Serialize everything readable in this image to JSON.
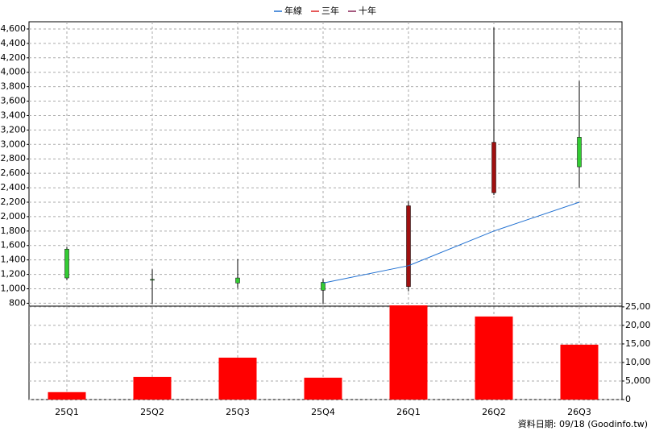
{
  "chart_data": [
    {
      "type": "candlestick",
      "series": [
        {
          "name": "年線",
          "color": "#1f6fd1",
          "values": [
            null,
            null,
            null,
            1080,
            1320,
            1800,
            2200
          ]
        },
        {
          "name": "三年",
          "color": "#dd2222",
          "values": [
            null,
            null,
            null,
            null,
            null,
            null,
            null
          ]
        },
        {
          "name": "十年",
          "color": "#882255",
          "values": [
            null,
            null,
            null,
            null,
            null,
            null,
            null
          ]
        }
      ],
      "open": [
        1150,
        1120,
        1080,
        980,
        2150,
        3030,
        2690
      ],
      "high": [
        1580,
        1270,
        1410,
        1135,
        2215,
        4620,
        3880
      ],
      "low": [
        1120,
        790,
        1010,
        790,
        965,
        2300,
        2400
      ],
      "close": [
        1550,
        1130,
        1150,
        1090,
        1030,
        2330,
        3100
      ],
      "up_color": "#33cc33",
      "down_color": "#a01010",
      "ylim": [
        760,
        4700
      ],
      "yticks": [
        800,
        {
          "value": 1000,
          "label": "1,000"
        },
        {
          "value": 1200,
          "label": "1,200"
        },
        {
          "value": 1400,
          "label": "1,400"
        },
        {
          "value": 1600,
          "label": "1,600"
        },
        {
          "value": 1800,
          "label": "1,800"
        },
        {
          "value": 2000,
          "label": "2,000"
        },
        {
          "value": 2200,
          "label": "2,200"
        },
        {
          "value": 2400,
          "label": "2,400"
        },
        {
          "value": 2600,
          "label": "2,600"
        },
        {
          "value": 2800,
          "label": "2,800"
        },
        {
          "value": 3000,
          "label": "3,000"
        },
        {
          "value": 3200,
          "label": "3,200"
        },
        {
          "value": 3400,
          "label": "3,400"
        },
        {
          "value": 3600,
          "label": "3,600"
        },
        {
          "value": 3800,
          "label": "3,800"
        },
        {
          "value": 4000,
          "label": "4,000"
        },
        {
          "value": 4200,
          "label": "4,200"
        },
        {
          "value": 4400,
          "label": "4,400"
        },
        {
          "value": 4600,
          "label": "4,600"
        }
      ],
      "grid": true
    },
    {
      "type": "bar",
      "categories": [
        "25Q1",
        "25Q2",
        "25Q3",
        "25Q4",
        "26Q1",
        "26Q2",
        "26Q3"
      ],
      "values": [
        2000,
        6100,
        11300,
        5900,
        25400,
        22400,
        14800
      ],
      "color": "#ff0000",
      "ylim": [
        0,
        25200
      ],
      "yticks": [
        0,
        {
          "value": 5000,
          "label": "5,000"
        },
        {
          "value": 10000,
          "label": "10,000"
        },
        {
          "value": 15000,
          "label": "15,000"
        },
        {
          "value": 20000,
          "label": "20,000"
        },
        {
          "value": 25000,
          "label": "25,000"
        }
      ],
      "grid": true,
      "note": "資料日期: 09/18  (Goodinfo.tw)"
    }
  ]
}
